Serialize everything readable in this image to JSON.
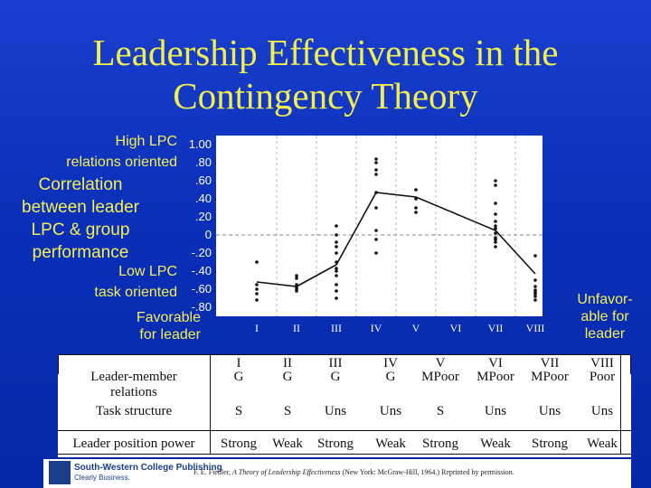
{
  "title_line1": "Leadership Effectiveness in the",
  "title_line2": "Contingency Theory",
  "y_axis": {
    "label_lines": [
      "Correlation",
      "between leader",
      "LPC & group",
      "performance"
    ],
    "high_label": "High LPC",
    "high_sub": "relations oriented",
    "low_label": "Low LPC",
    "low_sub": "task oriented"
  },
  "favorable_label": [
    "Favorable",
    "for leader"
  ],
  "unfavorable_label": [
    "Unfavor-",
    "able for",
    "leader"
  ],
  "chart_data": {
    "type": "line",
    "title": "Leadership Effectiveness in the Contingency Theory",
    "ylabel": "Correlation between leader LPC & group performance",
    "xlabel": "",
    "ylim": [
      -0.8,
      1.0
    ],
    "yticks": [
      "1.00",
      ".80",
      ".60",
      ".40",
      ".20",
      "0",
      "-.20",
      "-.40",
      "-.60",
      "-.80"
    ],
    "ytick_values": [
      1.0,
      0.8,
      0.6,
      0.4,
      0.2,
      0,
      -0.2,
      -0.4,
      -0.6,
      -0.8
    ],
    "categories": [
      "I",
      "II",
      "III",
      "IV",
      "V",
      "VI",
      "VII",
      "VIII"
    ],
    "median_line": {
      "x": [
        1,
        2,
        3,
        4,
        5,
        7,
        8
      ],
      "y": [
        -0.52,
        -0.57,
        -0.33,
        0.47,
        0.42,
        0.05,
        -0.43
      ]
    },
    "scatter_points": [
      {
        "x": 1,
        "y": -0.3
      },
      {
        "x": 1,
        "y": -0.55
      },
      {
        "x": 1,
        "y": -0.6
      },
      {
        "x": 1,
        "y": -0.65
      },
      {
        "x": 1,
        "y": -0.72
      },
      {
        "x": 2,
        "y": -0.45
      },
      {
        "x": 2,
        "y": -0.48
      },
      {
        "x": 2,
        "y": -0.55
      },
      {
        "x": 2,
        "y": -0.58
      },
      {
        "x": 2,
        "y": -0.6
      },
      {
        "x": 2,
        "y": -0.62
      },
      {
        "x": 3,
        "y": 0.1
      },
      {
        "x": 3,
        "y": 0.0
      },
      {
        "x": 3,
        "y": -0.08
      },
      {
        "x": 3,
        "y": -0.13
      },
      {
        "x": 3,
        "y": -0.2
      },
      {
        "x": 3,
        "y": -0.3
      },
      {
        "x": 3,
        "y": -0.37
      },
      {
        "x": 3,
        "y": -0.4
      },
      {
        "x": 3,
        "y": -0.45
      },
      {
        "x": 3,
        "y": -0.55
      },
      {
        "x": 3,
        "y": -0.62
      },
      {
        "x": 3,
        "y": -0.7
      },
      {
        "x": 4,
        "y": 0.84
      },
      {
        "x": 4,
        "y": 0.8
      },
      {
        "x": 4,
        "y": 0.72
      },
      {
        "x": 4,
        "y": 0.67
      },
      {
        "x": 4,
        "y": 0.47
      },
      {
        "x": 4,
        "y": 0.3
      },
      {
        "x": 4,
        "y": 0.05
      },
      {
        "x": 4,
        "y": -0.05
      },
      {
        "x": 4,
        "y": -0.2
      },
      {
        "x": 5,
        "y": 0.5
      },
      {
        "x": 5,
        "y": 0.4
      },
      {
        "x": 5,
        "y": 0.3
      },
      {
        "x": 5,
        "y": 0.25
      },
      {
        "x": 7,
        "y": 0.6
      },
      {
        "x": 7,
        "y": 0.55
      },
      {
        "x": 7,
        "y": 0.35
      },
      {
        "x": 7,
        "y": 0.23
      },
      {
        "x": 7,
        "y": 0.15
      },
      {
        "x": 7,
        "y": 0.1
      },
      {
        "x": 7,
        "y": 0.07
      },
      {
        "x": 7,
        "y": 0.02
      },
      {
        "x": 7,
        "y": -0.03
      },
      {
        "x": 7,
        "y": -0.05
      },
      {
        "x": 7,
        "y": -0.08
      },
      {
        "x": 7,
        "y": -0.13
      },
      {
        "x": 8,
        "y": -0.23
      },
      {
        "x": 8,
        "y": -0.5
      },
      {
        "x": 8,
        "y": -0.57
      },
      {
        "x": 8,
        "y": -0.61
      },
      {
        "x": 8,
        "y": -0.63
      },
      {
        "x": 8,
        "y": -0.65
      },
      {
        "x": 8,
        "y": -0.68
      },
      {
        "x": 8,
        "y": -0.72
      }
    ],
    "reference_line_y": 0
  },
  "table": {
    "headers": [
      "I",
      "II",
      "III",
      "IV",
      "V",
      "VI",
      "VII",
      "VIII"
    ],
    "rows": [
      {
        "label": [
          "Leader-member",
          "relations"
        ],
        "cells": [
          "G",
          "G",
          "G",
          "G",
          "MPoor",
          "MPoor",
          "MPoor",
          "Poor"
        ]
      },
      {
        "label": [
          "Task structure"
        ],
        "cells": [
          "S",
          "S",
          "Uns",
          "Uns",
          "S",
          "Uns",
          "Uns",
          "Uns"
        ]
      },
      {
        "label": [
          "Leader position power"
        ],
        "cells": [
          "Strong",
          "Weak",
          "Strong",
          "Weak",
          "Strong",
          "Weak",
          "Strong",
          "Weak"
        ]
      }
    ]
  },
  "footer": {
    "publisher": "South-Western College Publishing",
    "tagline": "Clearly Business.",
    "citation_prefix": "F. E. Fiedler, ",
    "citation_title": "A Theory of Leadership Effectiveness",
    "citation_suffix": " (New York: McGraw-Hill, 1964.) Reprinted by permission."
  },
  "colors": {
    "background": "#0a2fb8",
    "title": "#f2ee4a",
    "label": "#f4ee54",
    "tick": "#ffffff"
  }
}
